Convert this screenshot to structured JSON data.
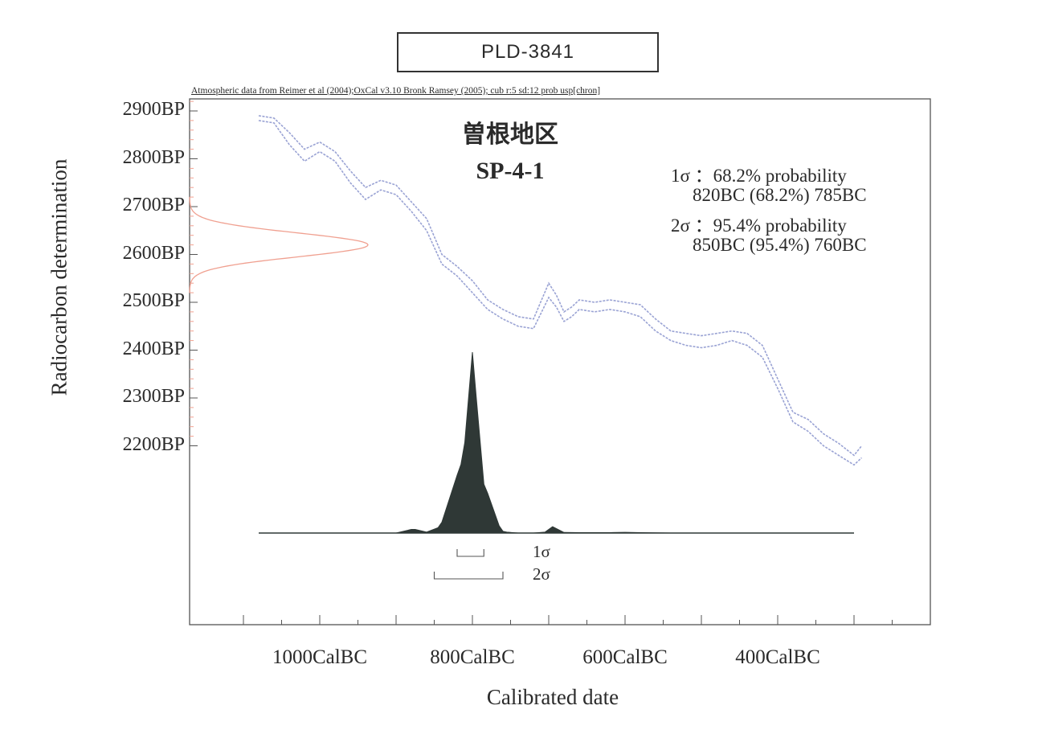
{
  "lab_code": "PLD-3841",
  "header_note": "Atmospheric data from Reimer et al (2004);OxCal v3.10 Bronk Ramsey (2005); cub r:5 sd:12 prob usp[chron]",
  "sample": {
    "area": "曽根地区",
    "id": "SP-4-1"
  },
  "results": {
    "sigma1_line": "1σ ：68.2% probability",
    "sigma1_range": "820BC (68.2%) 785BC",
    "sigma2_line": "2σ ：95.4% probability",
    "sigma2_range": "850BC (95.4%) 760BC"
  },
  "colors": {
    "curve": "#9aa3d4",
    "radiocarbon": "#f0a090",
    "posterior": "#2f3836",
    "axis": "#555555"
  },
  "chart_data": {
    "type": "area",
    "xlabel": "Calibrated date",
    "ylabel": "Radiocarbon determination",
    "x_unit": "CalBC",
    "y_unit": "BP",
    "xlim": [
      1170,
      200
    ],
    "ylim": [
      2000,
      2930
    ],
    "x_tick_labels": [
      "1000CalBC",
      "800CalBC",
      "600CalBC",
      "400CalBC"
    ],
    "x_ticks": [
      1000,
      800,
      600,
      400
    ],
    "y_tick_labels": [
      "2900BP",
      "2800BP",
      "2700BP",
      "2600BP",
      "2500BP",
      "2400BP",
      "2300BP",
      "2200BP"
    ],
    "y_ticks": [
      2900,
      2800,
      2700,
      2600,
      2500,
      2400,
      2300,
      2200
    ],
    "radiocarbon_date": {
      "mean_bp": 2620,
      "sd": 25
    },
    "calibration_curve": {
      "x": [
        1080,
        1060,
        1040,
        1020,
        1000,
        980,
        960,
        940,
        920,
        900,
        880,
        860,
        840,
        820,
        800,
        780,
        760,
        740,
        720,
        700,
        690,
        680,
        670,
        660,
        640,
        620,
        600,
        580,
        560,
        540,
        520,
        500,
        480,
        460,
        440,
        420,
        400,
        380,
        360,
        340,
        320,
        300,
        290
      ],
      "upper": [
        2890,
        2885,
        2855,
        2820,
        2835,
        2815,
        2775,
        2740,
        2755,
        2745,
        2710,
        2675,
        2600,
        2575,
        2545,
        2505,
        2485,
        2470,
        2465,
        2540,
        2515,
        2480,
        2490,
        2505,
        2500,
        2505,
        2500,
        2495,
        2465,
        2440,
        2435,
        2430,
        2435,
        2440,
        2435,
        2410,
        2340,
        2270,
        2255,
        2225,
        2205,
        2180,
        2200
      ],
      "lower": [
        2880,
        2875,
        2830,
        2795,
        2815,
        2795,
        2750,
        2715,
        2735,
        2725,
        2690,
        2650,
        2580,
        2555,
        2520,
        2485,
        2465,
        2450,
        2445,
        2510,
        2490,
        2460,
        2470,
        2485,
        2480,
        2485,
        2480,
        2470,
        2440,
        2420,
        2410,
        2405,
        2410,
        2420,
        2410,
        2385,
        2320,
        2250,
        2230,
        2200,
        2180,
        2160,
        2175
      ]
    },
    "posterior": {
      "x": [
        1080,
        900,
        880,
        875,
        860,
        845,
        840,
        820,
        815,
        810,
        800,
        795,
        785,
        780,
        765,
        760,
        755,
        740,
        720,
        705,
        695,
        680,
        660,
        640,
        620,
        600,
        580,
        560,
        540,
        500,
        400,
        320,
        300
      ],
      "density": [
        0,
        0,
        0.02,
        0.02,
        0.005,
        0.03,
        0.06,
        0.32,
        0.38,
        0.5,
        1.0,
        0.75,
        0.27,
        0.22,
        0.04,
        0.01,
        0.005,
        0,
        0,
        0.005,
        0.035,
        0.003,
        0.002,
        0.002,
        0.002,
        0.004,
        0.002,
        0.001,
        0,
        0,
        0,
        0,
        0
      ]
    },
    "ranges": [
      {
        "label": "1σ",
        "from": 820,
        "to": 785
      },
      {
        "label": "2σ",
        "from": 850,
        "to": 760
      }
    ]
  }
}
